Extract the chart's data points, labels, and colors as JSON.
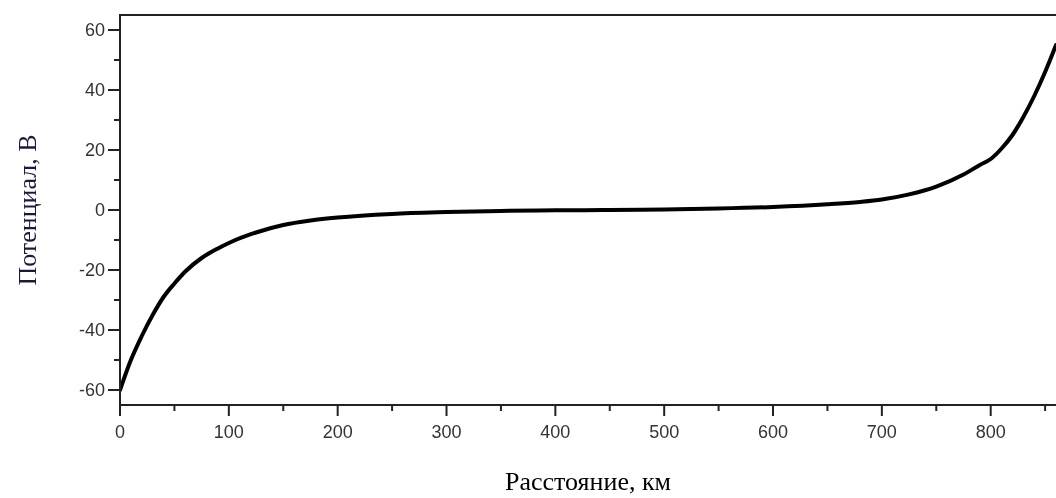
{
  "chart_data": {
    "type": "line",
    "xlabel": "Расстояние, км",
    "ylabel": "Потенциал, В",
    "x": [
      0,
      10,
      20,
      30,
      40,
      50,
      60,
      75,
      90,
      100,
      125,
      150,
      175,
      200,
      250,
      300,
      350,
      400,
      450,
      500,
      550,
      600,
      650,
      680,
      700,
      725,
      750,
      775,
      790,
      800,
      810,
      820,
      830,
      840,
      850,
      860
    ],
    "series": [
      {
        "color": "#000000",
        "values": [
          -60,
          -50,
          -42,
          -35,
          -29,
          -24.5,
          -20.5,
          -16,
          -12.8,
          -11,
          -7.5,
          -5,
          -3.5,
          -2.5,
          -1.3,
          -0.7,
          -0.3,
          -0.1,
          0,
          0.2,
          0.5,
          1,
          1.9,
          2.7,
          3.5,
          5.2,
          7.8,
          11.8,
          15,
          17,
          20.5,
          25,
          31,
          38,
          46,
          55
        ]
      }
    ],
    "xlim": [
      0,
      860
    ],
    "ylim": [
      -65,
      65
    ],
    "xticks": [
      0,
      {
        "value": 50,
        "label": null
      },
      100,
      {
        "value": 150,
        "label": null
      },
      200,
      {
        "value": 250,
        "label": null
      },
      300,
      {
        "value": 350,
        "label": null
      },
      400,
      {
        "value": 450,
        "label": null
      },
      500,
      {
        "value": 550,
        "label": null
      },
      600,
      {
        "value": 650,
        "label": null
      },
      700,
      {
        "value": 750,
        "label": null
      },
      800,
      {
        "value": 850,
        "label": null
      }
    ],
    "yticks": [
      -60,
      {
        "value": -50,
        "label": null
      },
      -40,
      {
        "value": -30,
        "label": null
      },
      -20,
      {
        "value": -10,
        "label": null
      },
      0,
      {
        "value": 10,
        "label": null
      },
      20,
      {
        "value": 30,
        "label": null
      },
      40,
      {
        "value": 50,
        "label": null
      },
      60
    ],
    "grid": false,
    "marker": "none",
    "line_style": "solid"
  }
}
